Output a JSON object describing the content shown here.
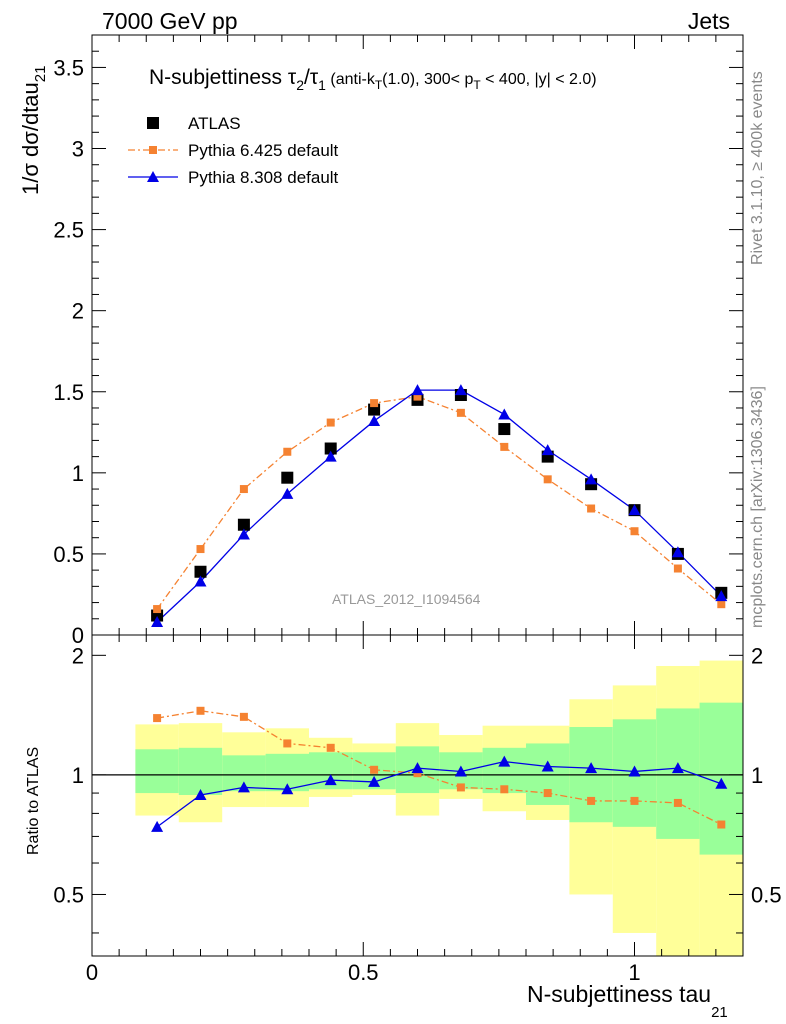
{
  "header": {
    "left": "7000 GeV pp",
    "right": "Jets"
  },
  "side_notes": {
    "top": "Rivet 3.1.10, ≥ 400k events",
    "bottom": "mcplots.cern.ch [arXiv:1306.3436]"
  },
  "colors": {
    "atlas": "#000000",
    "pythia6": "#f58231",
    "pythia8": "#0000e6",
    "band_inner": "#99ff99",
    "band_outer": "#ffff99"
  },
  "chart_data": [
    {
      "type": "scatter",
      "title": "N-subjettiness τ₂/τ₁ (anti-k_T(1.0), 300< p_T < 400, |y| < 2.0)",
      "title_parts": {
        "main": "N-subjettiness τ",
        "sub1": "2",
        "slash": "/τ",
        "sub2": "1",
        "rest1": " (anti-k",
        "subT1": "T",
        "rest2": "(1.0), 300< p",
        "subT2": "T",
        "rest3": " < 400, |y| < 2.0)"
      },
      "ylabel_main": "1/σ dσ/dtau",
      "ylabel_sub": "21",
      "xlim": [
        0,
        1.2
      ],
      "ylim": [
        0,
        3.7
      ],
      "yticks": [
        0,
        0.5,
        1,
        1.5,
        2,
        2.5,
        3,
        3.5
      ],
      "ytick_labels": [
        "0",
        "0.5",
        "1",
        "1.5",
        "2",
        "2.5",
        "3",
        "3.5"
      ],
      "analysis_label": "ATLAS_2012_I1094564",
      "legend_position": "top-left",
      "x": [
        0.12,
        0.2,
        0.28,
        0.36,
        0.44,
        0.52,
        0.6,
        0.68,
        0.76,
        0.84,
        0.92,
        1.0,
        1.08,
        1.16
      ],
      "series": [
        {
          "name": "ATLAS",
          "marker": "square",
          "line": "none",
          "values": [
            0.12,
            0.39,
            0.68,
            0.97,
            1.15,
            1.39,
            1.45,
            1.48,
            1.27,
            1.1,
            0.93,
            0.77,
            0.5,
            0.26
          ]
        },
        {
          "name": "Pythia 6.425 default",
          "marker": "small-square",
          "line": "dash-dot",
          "values": [
            0.16,
            0.53,
            0.9,
            1.13,
            1.31,
            1.43,
            1.47,
            1.37,
            1.16,
            0.96,
            0.78,
            0.64,
            0.41,
            0.19
          ]
        },
        {
          "name": "Pythia 8.308 default",
          "marker": "triangle",
          "line": "solid",
          "values": [
            0.08,
            0.33,
            0.62,
            0.87,
            1.1,
            1.32,
            1.51,
            1.51,
            1.36,
            1.14,
            0.96,
            0.77,
            0.51,
            0.24
          ]
        }
      ]
    },
    {
      "type": "line",
      "ylabel": "Ratio to ATLAS",
      "xlabel_main": "N-subjettiness tau",
      "xlabel_sub": "21",
      "xlim": [
        0,
        1.2
      ],
      "ylim": [
        0.35,
        2.25
      ],
      "scale": "log",
      "xticks": [
        0,
        0.5,
        1
      ],
      "xtick_labels": [
        "0",
        "0.5",
        "1"
      ],
      "yticks": [
        0.5,
        1,
        2
      ],
      "ytick_labels": [
        "0.5",
        "1",
        "2"
      ],
      "reference_line": 1,
      "x": [
        0.12,
        0.2,
        0.28,
        0.36,
        0.44,
        0.52,
        0.6,
        0.68,
        0.76,
        0.84,
        0.92,
        1.0,
        1.08,
        1.16
      ],
      "bin_edges": [
        0.08,
        0.16,
        0.24,
        0.32,
        0.4,
        0.48,
        0.56,
        0.64,
        0.72,
        0.8,
        0.88,
        0.96,
        1.04,
        1.12,
        1.2
      ],
      "bands": {
        "inner": {
          "name": "stat",
          "upper": [
            1.16,
            1.17,
            1.12,
            1.13,
            1.14,
            1.14,
            1.18,
            1.14,
            1.17,
            1.2,
            1.32,
            1.38,
            1.47,
            1.52
          ],
          "lower": [
            0.9,
            0.89,
            0.91,
            0.91,
            0.92,
            0.92,
            0.9,
            0.92,
            0.9,
            0.84,
            0.76,
            0.74,
            0.69,
            0.63
          ]
        },
        "outer": {
          "name": "total",
          "upper": [
            1.34,
            1.35,
            1.28,
            1.31,
            1.24,
            1.2,
            1.35,
            1.26,
            1.33,
            1.33,
            1.55,
            1.68,
            1.88,
            1.94
          ],
          "lower": [
            0.79,
            0.76,
            0.83,
            0.83,
            0.88,
            0.89,
            0.79,
            0.87,
            0.81,
            0.77,
            0.5,
            0.4,
            0.35,
            0.35
          ]
        }
      },
      "series": [
        {
          "name": "Pythia 6.425 default",
          "values": [
            1.39,
            1.45,
            1.4,
            1.2,
            1.17,
            1.03,
            1.01,
            0.93,
            0.92,
            0.9,
            0.86,
            0.86,
            0.85,
            0.75
          ]
        },
        {
          "name": "Pythia 8.308 default",
          "values": [
            0.74,
            0.89,
            0.93,
            0.92,
            0.97,
            0.96,
            1.04,
            1.02,
            1.08,
            1.05,
            1.04,
            1.02,
            1.04,
            0.95
          ]
        }
      ]
    }
  ]
}
